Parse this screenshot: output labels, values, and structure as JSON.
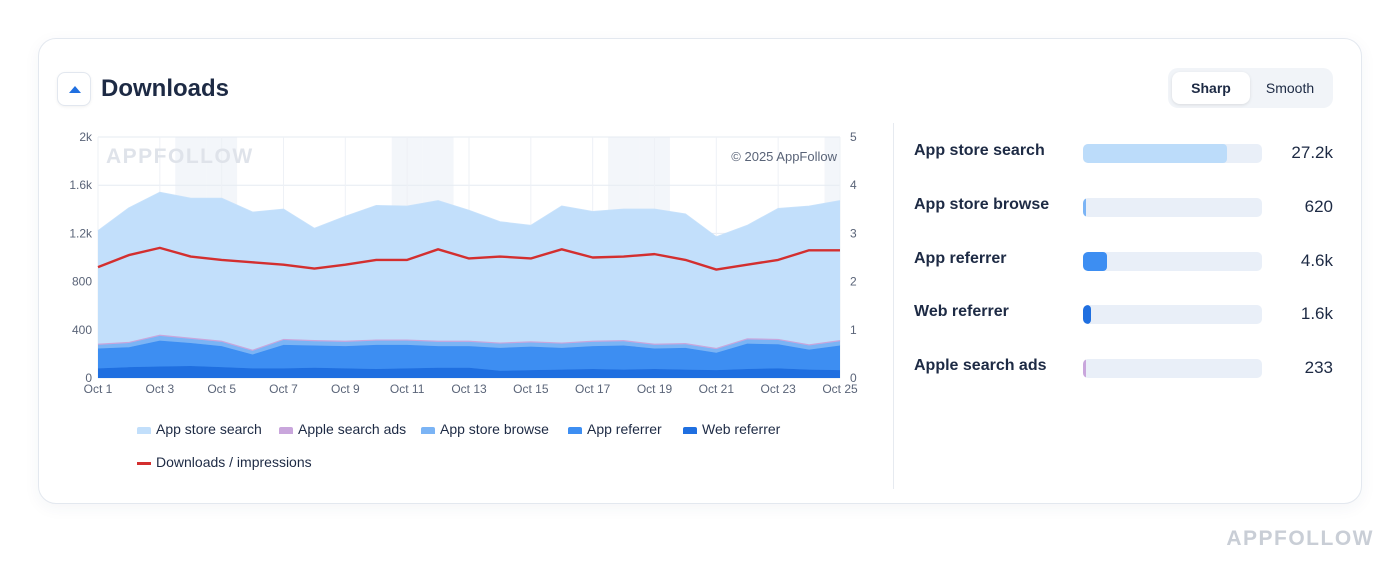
{
  "card": {
    "title": "Downloads",
    "toggle": {
      "sharp": "Sharp",
      "smooth": "Smooth",
      "selected": "Sharp"
    }
  },
  "chart_data": {
    "type": "area",
    "title": "",
    "watermark": "APPFOLLOW",
    "copyright": "© 2025 AppFollow",
    "x": [
      "Oct 1",
      "Oct 2",
      "Oct 3",
      "Oct 4",
      "Oct 5",
      "Oct 6",
      "Oct 7",
      "Oct 8",
      "Oct 9",
      "Oct 10",
      "Oct 11",
      "Oct 12",
      "Oct 13",
      "Oct 14",
      "Oct 15",
      "Oct 16",
      "Oct 17",
      "Oct 18",
      "Oct 19",
      "Oct 20",
      "Oct 21",
      "Oct 22",
      "Oct 23",
      "Oct 24",
      "Oct 25"
    ],
    "x_tick_labels": [
      "Oct 1",
      "Oct 3",
      "Oct 5",
      "Oct 7",
      "Oct 9",
      "Oct 11",
      "Oct 13",
      "Oct 15",
      "Oct 17",
      "Oct 19",
      "Oct 21",
      "Oct 23",
      "Oct 25"
    ],
    "y_left": {
      "ylim": [
        0,
        2000
      ],
      "ticks": [
        0,
        400,
        800,
        1200,
        1600,
        2000
      ],
      "tick_labels": [
        "0",
        "400",
        "800",
        "1.2k",
        "1.6k",
        "2k"
      ]
    },
    "y_right": {
      "ylim": [
        0,
        5
      ],
      "ticks": [
        0,
        1,
        2,
        3,
        4,
        5
      ],
      "tick_labels": [
        "0",
        "1",
        "2",
        "3",
        "4",
        "5"
      ]
    },
    "stacked": true,
    "weekend_bands": [
      "Oct 4",
      "Oct 5",
      "Oct 11",
      "Oct 12",
      "Oct 18",
      "Oct 19",
      "Oct 25"
    ],
    "series": [
      {
        "name": "Web referrer",
        "axis": "left",
        "color": "#1f6fe0",
        "values": [
          80,
          90,
          95,
          100,
          90,
          80,
          80,
          85,
          80,
          75,
          80,
          85,
          85,
          60,
          65,
          70,
          75,
          70,
          75,
          70,
          65,
          75,
          80,
          70,
          65
        ]
      },
      {
        "name": "App referrer",
        "axis": "left",
        "color": "#3d8ef2",
        "values": [
          165,
          165,
          215,
          190,
          175,
          115,
          195,
          185,
          185,
          200,
          195,
          180,
          180,
          190,
          195,
          180,
          190,
          200,
          170,
          180,
          145,
          210,
          200,
          165,
          205
        ]
      },
      {
        "name": "App store browse",
        "axis": "left",
        "color": "#7bb4f5",
        "values": [
          30,
          35,
          40,
          35,
          35,
          30,
          40,
          35,
          35,
          35,
          35,
          35,
          35,
          35,
          35,
          35,
          35,
          35,
          30,
          30,
          30,
          35,
          35,
          35,
          35
        ]
      },
      {
        "name": "Apple search ads",
        "axis": "left",
        "color": "#c9a6dc",
        "values": [
          10,
          10,
          10,
          10,
          10,
          10,
          10,
          10,
          10,
          10,
          10,
          10,
          10,
          10,
          10,
          10,
          10,
          10,
          10,
          10,
          10,
          10,
          10,
          10,
          10
        ]
      },
      {
        "name": "App store search",
        "axis": "left",
        "color": "#c2dffb",
        "values": [
          935,
          1110,
          1180,
          1155,
          1180,
          1140,
          1075,
          925,
          1030,
          1110,
          1105,
          1160,
          1080,
          1000,
          960,
          1130,
          1070,
          1085,
          1115,
          1070,
          920,
          935,
          1080,
          1145,
          1155
        ]
      },
      {
        "name": "Downloads / impressions",
        "axis": "right",
        "type": "line",
        "color": "#d32f2f",
        "values": [
          2.3,
          2.55,
          2.7,
          2.52,
          2.45,
          2.4,
          2.35,
          2.27,
          2.35,
          2.45,
          2.45,
          2.67,
          2.48,
          2.52,
          2.48,
          2.67,
          2.5,
          2.52,
          2.57,
          2.45,
          2.25,
          2.35,
          2.45,
          2.65,
          2.65
        ]
      }
    ],
    "legend": [
      {
        "label": "App store search",
        "color": "#c2dffb",
        "kind": "area"
      },
      {
        "label": "Apple search ads",
        "color": "#c9a6dc",
        "kind": "area"
      },
      {
        "label": "App store browse",
        "color": "#7bb4f5",
        "kind": "area"
      },
      {
        "label": "App referrer",
        "color": "#3d8ef2",
        "kind": "area"
      },
      {
        "label": "Web referrer",
        "color": "#1f6fe0",
        "kind": "area"
      },
      {
        "label": "Downloads / impressions",
        "color": "#d32f2f",
        "kind": "line"
      }
    ],
    "legend_placement": "bottom",
    "grid": true
  },
  "breakdown": {
    "type": "bar",
    "max": 27200,
    "items": [
      {
        "label": "App store search",
        "value": 27200,
        "value_label": "27.2k",
        "color": "#bcdcfa"
      },
      {
        "label": "App store browse",
        "value": 620,
        "value_label": "620",
        "color": "#7bb4f5"
      },
      {
        "label": "App referrer",
        "value": 4600,
        "value_label": "4.6k",
        "color": "#3d8ef2"
      },
      {
        "label": "Web referrer",
        "value": 1600,
        "value_label": "1.6k",
        "color": "#1f6fe0"
      },
      {
        "label": "Apple search ads",
        "value": 233,
        "value_label": "233",
        "color": "#c9a6dc"
      }
    ]
  },
  "footer": {
    "logo": "APPFOLLOW"
  }
}
